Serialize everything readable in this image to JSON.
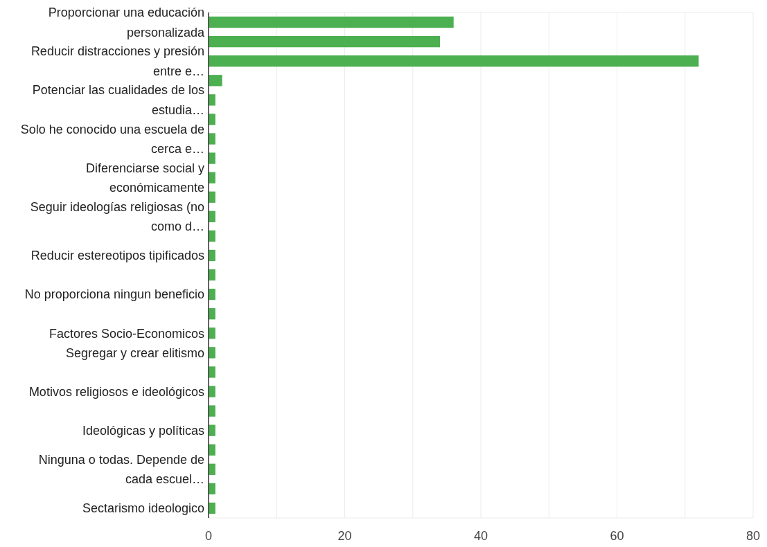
{
  "chart_data": {
    "type": "bar",
    "orientation": "horizontal",
    "categories": [
      "Proporcionar una educación personalizada",
      null,
      "Reducir distracciones y presión entre e…",
      null,
      "Potenciar las cualidades de los estudia…",
      null,
      "Solo he conocido una escuela de cerca e…",
      null,
      "Diferenciarse social y económicamente",
      null,
      "Seguir ideologías religiosas (no como d…",
      null,
      "Reducir estereotipos tipificados",
      null,
      "No proporciona ningun beneficio",
      null,
      "Factores Socio-Economicos",
      "Segregar y crear elitismo",
      null,
      "Motivos religiosos e ideológicos",
      null,
      "Ideológicas y políticas",
      null,
      "Ninguna o todas. Depende de cada escuel…",
      null,
      "Sectarismo ideologico"
    ],
    "values": [
      36,
      34,
      72,
      2,
      1,
      1,
      1,
      1,
      1,
      1,
      1,
      1,
      1,
      1,
      1,
      1,
      1,
      1,
      1,
      1,
      1,
      1,
      1,
      1,
      1,
      1
    ],
    "color": "#4caf50",
    "xlim": [
      0,
      80
    ],
    "xticks": [
      0,
      {
        "value": 10,
        "label": null
      },
      20,
      {
        "value": 30,
        "label": null
      },
      40,
      {
        "value": 50,
        "label": null
      },
      60,
      {
        "value": 70,
        "label": null
      },
      80
    ],
    "grid": "x"
  }
}
